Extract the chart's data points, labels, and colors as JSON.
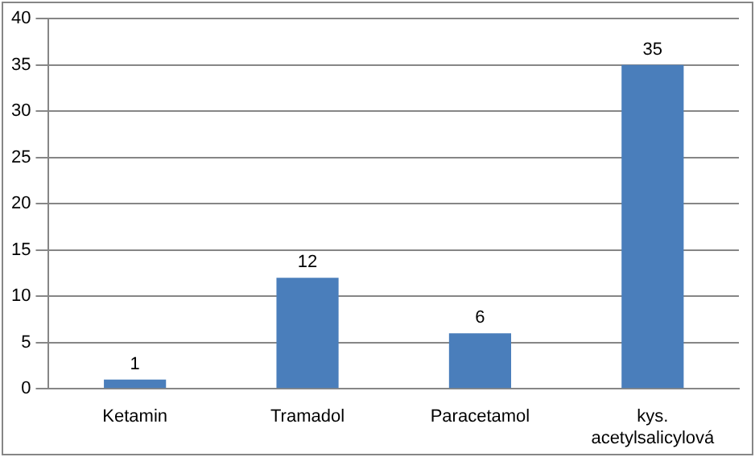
{
  "chart_data": {
    "type": "bar",
    "categories": [
      "Ketamin",
      "Tramadol",
      "Paracetamol",
      "kys. acetylsalicylová"
    ],
    "values": [
      1,
      12,
      6,
      35
    ],
    "color": "#4a7ebb",
    "ylim": [
      0,
      40
    ],
    "yticks": [
      0,
      5,
      10,
      15,
      20,
      25,
      30,
      35,
      40
    ],
    "grid": "y",
    "data_labels": true,
    "legend": false
  }
}
